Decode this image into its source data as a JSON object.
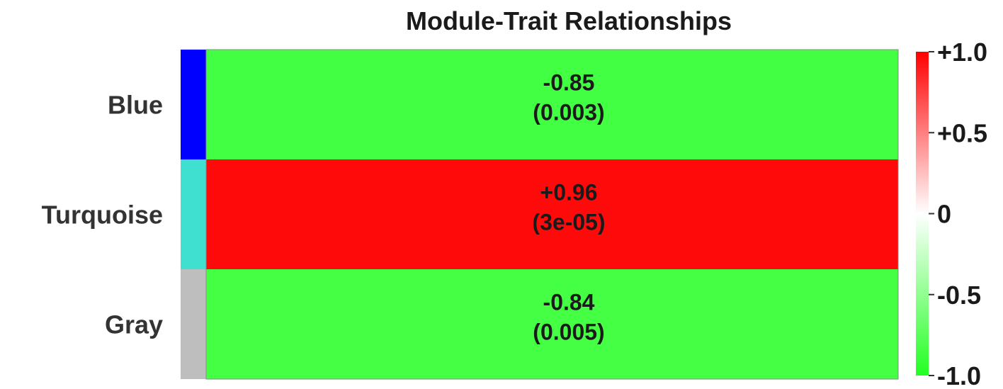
{
  "chart_data": {
    "type": "heatmap",
    "title": "Module-Trait Relationships",
    "rows": [
      "Blue",
      "Turquoise",
      "Gray"
    ],
    "row_colors": [
      "#0000ff",
      "#40e0d0",
      "#bebebe"
    ],
    "columns": [
      ""
    ],
    "values": [
      [
        -0.85
      ],
      [
        0.96
      ],
      [
        -0.84
      ]
    ],
    "value_labels": [
      [
        "-0.85"
      ],
      [
        "+0.96"
      ],
      [
        "-0.84"
      ]
    ],
    "p_value_labels": [
      [
        "(0.003)"
      ],
      [
        "(3e-05)"
      ],
      [
        "(0.005)"
      ]
    ],
    "colorscale": {
      "min": -1.0,
      "max": 1.0,
      "low_color": "#22ff22",
      "mid_color": "#ffffff",
      "high_color": "#ff0000",
      "ticks": [
        1.0,
        0.5,
        0,
        -0.5,
        -1.0
      ],
      "tick_labels": [
        "+1.0",
        "+0.5",
        "0",
        "-0.5",
        "-1.0"
      ]
    }
  }
}
